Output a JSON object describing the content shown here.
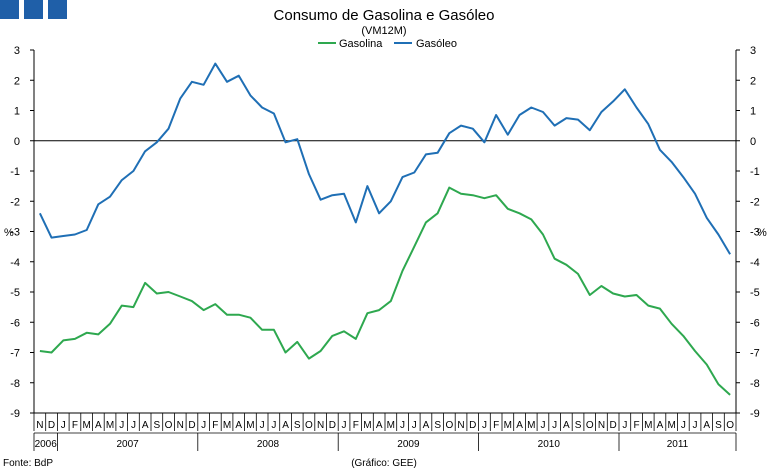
{
  "brand_marks": [
    {
      "name": "logo-square",
      "color": "#1f5fa8"
    },
    {
      "name": "logo-square",
      "color": "#1f5fa8"
    },
    {
      "name": "logo-square",
      "color": "#1f5fa8"
    }
  ],
  "source_label": "Fonte: BdP",
  "credit_label": "(Gráfico: GEE)",
  "chart_data": {
    "type": "line",
    "title": "Consumo de Gasolina e Gasóleo",
    "subtitle": "(VM12M)",
    "ylabel_left": "%",
    "ylabel_right": "%",
    "ylim": [
      -9,
      3
    ],
    "yticks": [
      3,
      2,
      1,
      0,
      -1,
      -2,
      -3,
      -4,
      -5,
      -6,
      -7,
      -8,
      -9
    ],
    "grid": false,
    "legend_position": "top-center",
    "categories": [
      "N",
      "D",
      "J",
      "F",
      "M",
      "A",
      "M",
      "J",
      "J",
      "A",
      "S",
      "O",
      "N",
      "D",
      "J",
      "F",
      "M",
      "A",
      "M",
      "J",
      "J",
      "A",
      "S",
      "O",
      "N",
      "D",
      "J",
      "F",
      "M",
      "A",
      "M",
      "J",
      "J",
      "A",
      "S",
      "O",
      "N",
      "D",
      "J",
      "F",
      "M",
      "A",
      "M",
      "J",
      "J",
      "A",
      "S",
      "O",
      "N",
      "D",
      "J",
      "F",
      "M",
      "A",
      "M",
      "J",
      "J",
      "A",
      "S",
      "O"
    ],
    "year_labels": [
      {
        "label": "2006",
        "start": 0,
        "end": 1
      },
      {
        "label": "2007",
        "start": 2,
        "end": 13
      },
      {
        "label": "2008",
        "start": 14,
        "end": 25
      },
      {
        "label": "2009",
        "start": 26,
        "end": 37
      },
      {
        "label": "2010",
        "start": 38,
        "end": 49
      },
      {
        "label": "2011",
        "start": 50,
        "end": 59
      }
    ],
    "series": [
      {
        "name": "Gasolina",
        "color": "#2ea84f",
        "values": [
          -6.95,
          -7.0,
          -6.6,
          -6.55,
          -6.35,
          -6.4,
          -6.05,
          -5.45,
          -5.5,
          -4.7,
          -5.05,
          -5.0,
          -5.15,
          -5.3,
          -5.6,
          -5.4,
          -5.75,
          -5.75,
          -5.85,
          -6.25,
          -6.25,
          -7.0,
          -6.65,
          -7.2,
          -6.95,
          -6.45,
          -6.3,
          -6.55,
          -5.7,
          -5.6,
          -5.3,
          -4.3,
          -3.5,
          -2.7,
          -2.4,
          -1.55,
          -1.75,
          -1.8,
          -1.9,
          -1.8,
          -2.25,
          -2.4,
          -2.6,
          -3.1,
          -3.9,
          -4.1,
          -4.4,
          -5.1,
          -4.8,
          -5.05,
          -5.15,
          -5.1,
          -5.45,
          -5.55,
          -6.05,
          -6.45,
          -6.95,
          -7.4,
          -8.05,
          -8.4
        ]
      },
      {
        "name": "Gasóleo",
        "color": "#1f6fb5",
        "values": [
          -2.4,
          -3.2,
          -3.15,
          -3.1,
          -2.95,
          -2.1,
          -1.85,
          -1.3,
          -1.0,
          -0.35,
          -0.05,
          0.4,
          1.4,
          1.95,
          1.85,
          2.55,
          1.95,
          2.15,
          1.5,
          1.1,
          0.9,
          -0.05,
          0.05,
          -1.1,
          -1.95,
          -1.8,
          -1.75,
          -2.7,
          -1.5,
          -2.4,
          -2.0,
          -1.2,
          -1.05,
          -0.45,
          -0.4,
          0.25,
          0.5,
          0.4,
          -0.05,
          0.85,
          0.2,
          0.85,
          1.1,
          0.95,
          0.5,
          0.75,
          0.7,
          0.35,
          0.95,
          1.3,
          1.7,
          1.1,
          0.55,
          -0.3,
          -0.7,
          -1.2,
          -1.75,
          -2.55,
          -3.1,
          -3.75
        ]
      }
    ]
  }
}
